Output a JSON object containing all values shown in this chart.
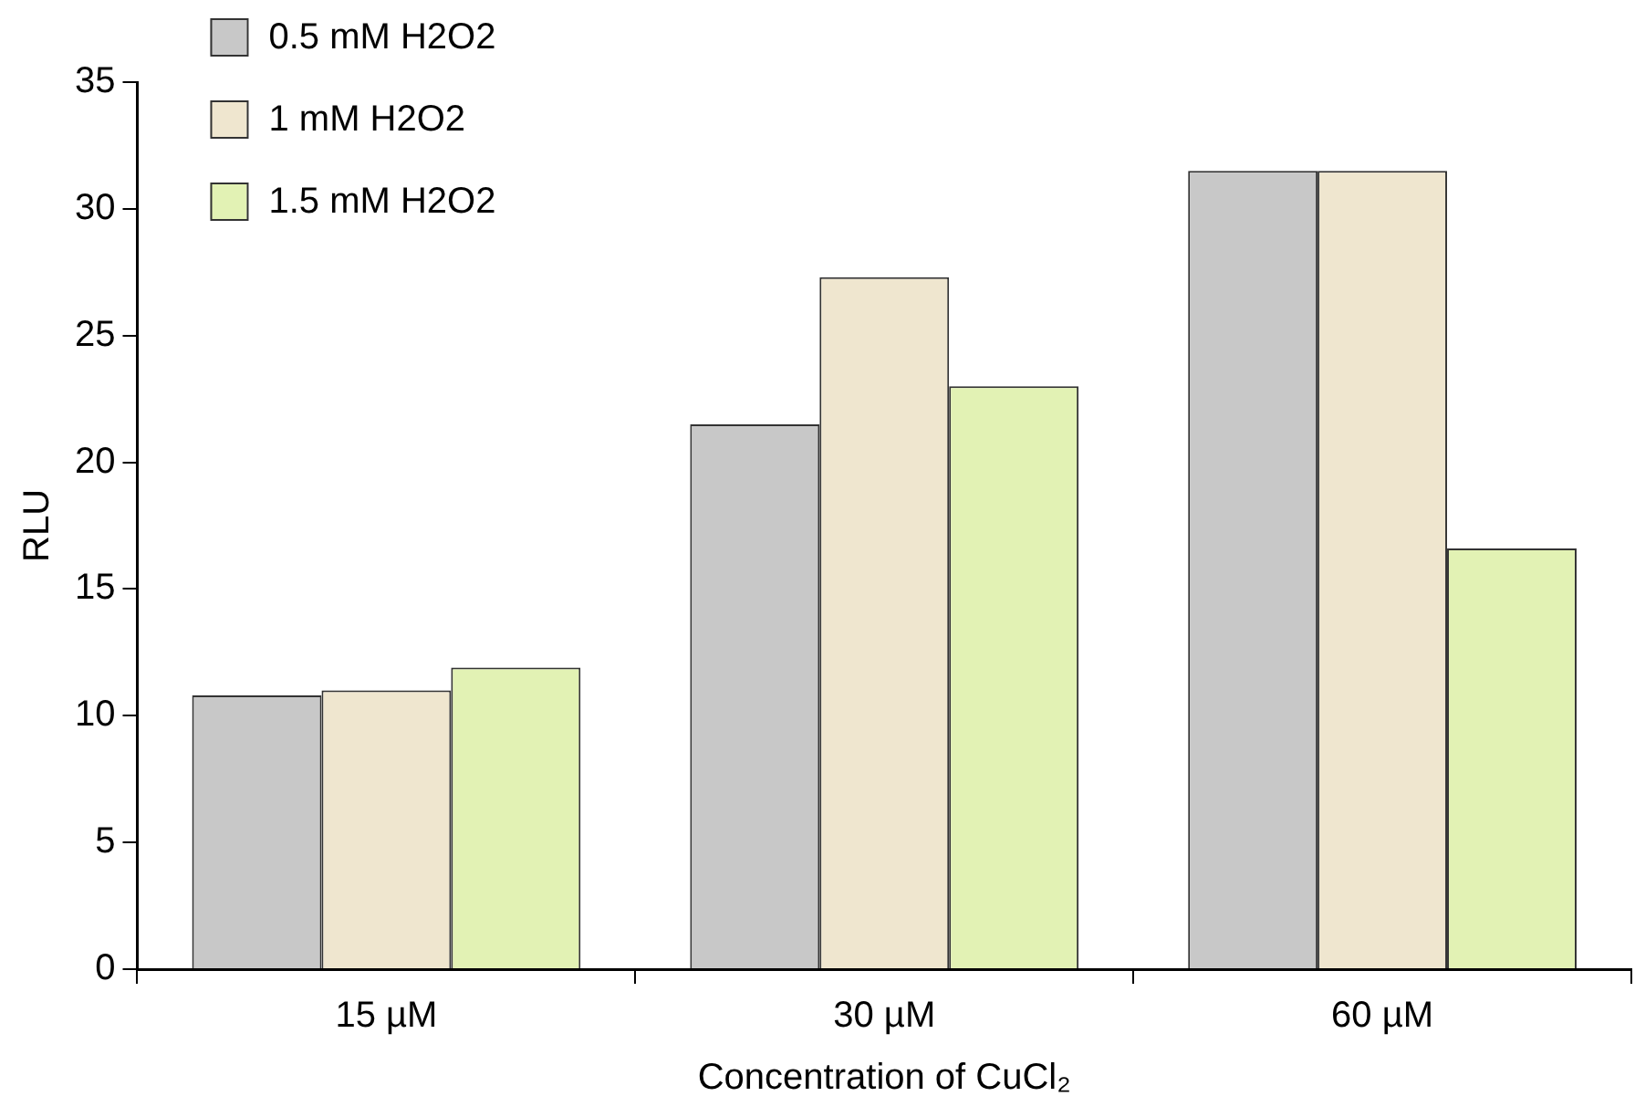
{
  "chart_data": {
    "type": "bar",
    "xlabel": "Concentration of CuCl₂",
    "ylabel": "RLU",
    "categories": [
      "15 µM",
      "30 µM",
      "60 µM"
    ],
    "series": [
      {
        "name": "0.5 mM H2O2",
        "color": "#c8c8c8",
        "values": [
          10.8,
          21.5,
          31.5
        ]
      },
      {
        "name": "1 mM H2O2",
        "color": "#efe6cf",
        "values": [
          11.0,
          27.3,
          31.5
        ]
      },
      {
        "name": "1.5 mM H2O2",
        "color": "#e2f2b4",
        "values": [
          11.9,
          23.0,
          16.6
        ]
      }
    ],
    "ylim": [
      0,
      35
    ],
    "yticks": [
      0,
      5,
      10,
      15,
      20,
      25,
      30,
      35
    ],
    "grid": false,
    "legend": "top left"
  }
}
